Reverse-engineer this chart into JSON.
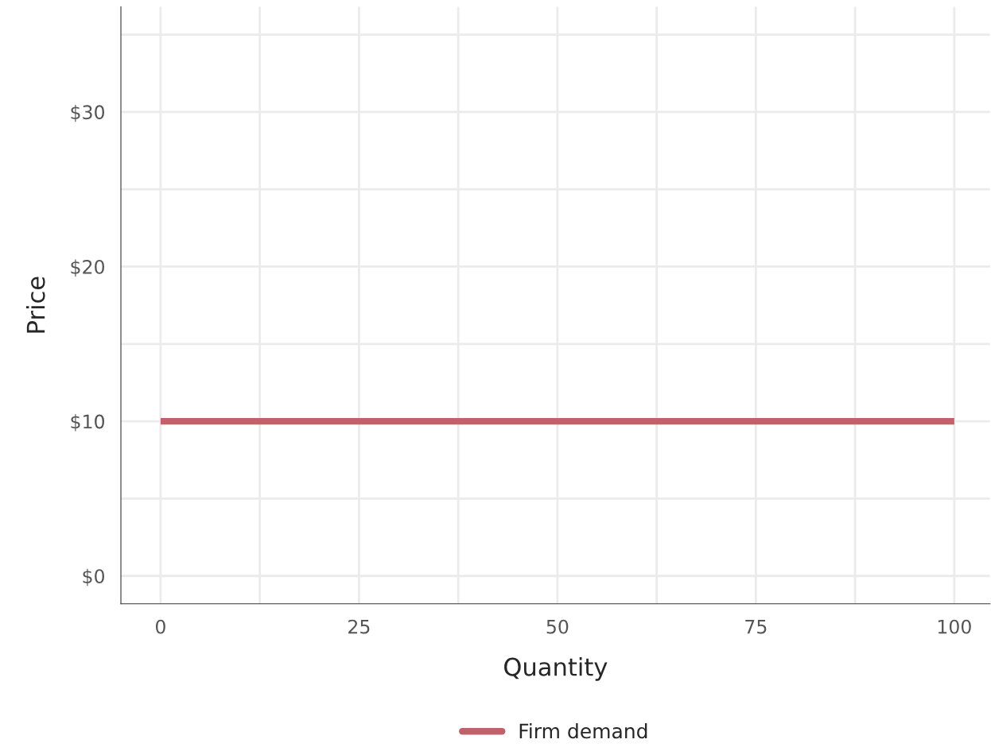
{
  "chart_data": {
    "type": "line",
    "xlabel": "Quantity",
    "ylabel": "Price",
    "x": [
      0,
      100
    ],
    "series": [
      {
        "name": "Firm demand",
        "color": "#c0626b",
        "values": [
          10,
          10
        ]
      }
    ],
    "xlim": [
      -5,
      104.5
    ],
    "ylim": [
      -1.8,
      36.8
    ],
    "xticks": [
      0,
      {
        "value": 12.5,
        "label": null
      },
      25,
      {
        "value": 37.5,
        "label": null
      },
      50,
      {
        "value": 62.5,
        "label": null
      },
      75,
      {
        "value": 87.5,
        "label": null
      },
      100
    ],
    "yticks": [
      {
        "value": 0,
        "label": "$0"
      },
      {
        "value": 5,
        "label": null
      },
      {
        "value": 10,
        "label": "$10"
      },
      {
        "value": 15,
        "label": null
      },
      {
        "value": 20,
        "label": "$20"
      },
      {
        "value": 25,
        "label": null
      },
      {
        "value": 30,
        "label": "$30"
      },
      {
        "value": 35,
        "label": null
      }
    ],
    "grid": true,
    "legend": "bottom",
    "marker": "none",
    "line_style": "solid"
  }
}
